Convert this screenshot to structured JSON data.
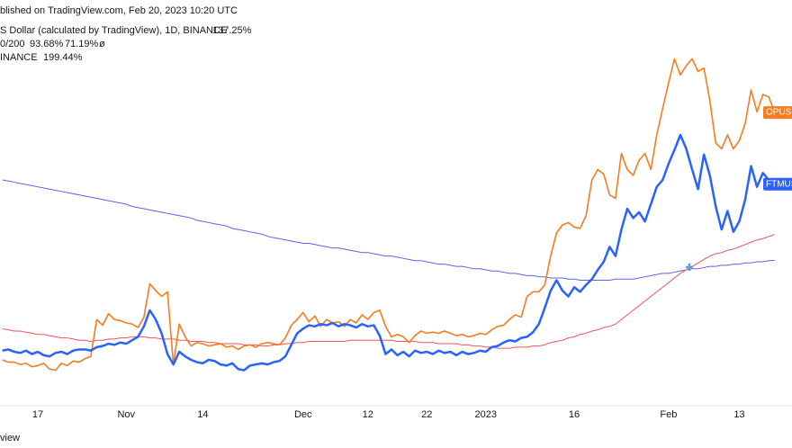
{
  "header": {
    "source": "blished on TradingView.com, Feb 20, 2023 10:20 UTC",
    "footer": "view"
  },
  "chart_data": {
    "type": "line",
    "ma_label": "0/200",
    "ma_symbol": "ø",
    "ylim": [
      -54,
      297
    ],
    "categories": [
      null,
      null,
      null,
      null,
      null,
      null,
      "17",
      null,
      null,
      null,
      null,
      null,
      null,
      null,
      null,
      null,
      null,
      null,
      null,
      null,
      null,
      "Nov",
      null,
      null,
      null,
      null,
      null,
      null,
      null,
      null,
      null,
      null,
      null,
      null,
      "14",
      null,
      null,
      null,
      null,
      null,
      null,
      null,
      null,
      null,
      null,
      null,
      null,
      null,
      null,
      null,
      null,
      "Dec",
      null,
      null,
      null,
      null,
      null,
      null,
      null,
      null,
      null,
      null,
      "12",
      null,
      null,
      null,
      null,
      null,
      null,
      null,
      null,
      null,
      "22",
      null,
      null,
      null,
      null,
      null,
      null,
      null,
      null,
      null,
      "2023",
      null,
      null,
      null,
      null,
      null,
      null,
      null,
      null,
      null,
      null,
      null,
      null,
      null,
      null,
      "16",
      null,
      null,
      null,
      null,
      null,
      null,
      null,
      null,
      null,
      null,
      null,
      null,
      null,
      null,
      null,
      "Feb",
      null,
      null,
      null,
      null,
      null,
      null,
      null,
      null,
      null,
      null,
      null,
      "13",
      null,
      null,
      null,
      null,
      null,
      null
    ],
    "series": [
      {
        "name": "S Dollar (calculated by TradingView), 1D, BINANCE",
        "tag": "FTMUS",
        "color": "#2962ff",
        "width": 2.5,
        "last_label": "137.25%",
        "values": [
          -7,
          -6,
          -8,
          -9,
          -7,
          -10,
          -8,
          -11,
          -12,
          -9,
          -8,
          -10,
          -7,
          -6,
          -6,
          -7,
          -4,
          -3,
          -1,
          -2,
          0,
          -1,
          2,
          5,
          14,
          28,
          20,
          8,
          -10,
          -19,
          -8,
          -12,
          -15,
          -17,
          -18,
          -15,
          -16,
          -19,
          -20,
          -18,
          -23,
          -24,
          -20,
          -19,
          -18,
          -19,
          -17,
          -16,
          -12,
          -2,
          8,
          12,
          15,
          14,
          16,
          15,
          17,
          14,
          16,
          15,
          13,
          16,
          14,
          15,
          6,
          -10,
          -6,
          -11,
          -8,
          -12,
          -7,
          -9,
          -8,
          -10,
          -7,
          -9,
          -8,
          -11,
          -8,
          -10,
          -9,
          -7,
          -8,
          -4,
          -3,
          0,
          2,
          1,
          4,
          5,
          9,
          16,
          30,
          45,
          54,
          45,
          40,
          48,
          44,
          50,
          55,
          63,
          70,
          83,
          75,
          98,
          116,
          108,
          113,
          105,
          120,
          135,
          141,
          155,
          167,
          180,
          168,
          150,
          133,
          163,
          145,
          118,
          98,
          114,
          96,
          105,
          124,
          153,
          135,
          147,
          141,
          137.25
        ]
      },
      {
        "name": "INANCE",
        "tag": "OPUSD",
        "color": "#f57c1f",
        "width": 1.6,
        "last_label": "199.44%",
        "values": [
          -15,
          -17,
          -17,
          -19,
          -18,
          -21,
          -20,
          -18,
          -23,
          -24,
          -18,
          -20,
          -16,
          -17,
          -14,
          -12,
          20,
          15,
          25,
          20,
          19,
          17,
          16,
          13,
          22,
          51,
          45,
          40,
          44,
          -19,
          16,
          5,
          -3,
          0,
          -1,
          -3,
          -2,
          -1,
          -4,
          -3,
          -6,
          -3,
          -2,
          -4,
          -1,
          0,
          -1,
          -2,
          4,
          15,
          20,
          26,
          18,
          23,
          14,
          20,
          17,
          18,
          14,
          20,
          17,
          24,
          20,
          26,
          28,
          14,
          5,
          7,
          5,
          0,
          6,
          10,
          8,
          9,
          8,
          10,
          8,
          6,
          7,
          5,
          6,
          8,
          7,
          11,
          14,
          15,
          20,
          24,
          22,
          40,
          44,
          44,
          50,
          75,
          95,
          102,
          104,
          100,
          99,
          110,
          141,
          150,
          146,
          128,
          125,
          164,
          150,
          145,
          158,
          164,
          150,
          180,
          203,
          225,
          246,
          232,
          240,
          246,
          235,
          238,
          210,
          173,
          168,
          180,
          168,
          175,
          190,
          219,
          200,
          215,
          213,
          199.44
        ]
      },
      {
        "color": "#f2525b",
        "width": 1,
        "last_label": "93.68%",
        "values": [
          12,
          11,
          10,
          10,
          9,
          8,
          7,
          7,
          6,
          5,
          4,
          4,
          3,
          2,
          2,
          1,
          2,
          2,
          3,
          3,
          4,
          4,
          5,
          5,
          5,
          4,
          4,
          3,
          3,
          3,
          2,
          2,
          1,
          1,
          1,
          0,
          0,
          -1,
          -1,
          -1,
          -1,
          -2,
          -2,
          -2,
          -3,
          -3,
          -2,
          -2,
          -1,
          -1,
          0,
          0,
          1,
          1,
          1,
          1,
          1,
          1,
          1,
          2,
          2,
          2,
          2,
          2,
          2,
          2,
          2,
          1,
          1,
          1,
          1,
          0,
          0,
          0,
          -1,
          -1,
          -1,
          -1,
          -2,
          -2,
          -3,
          -3,
          -4,
          -4,
          -5,
          -5,
          -5,
          -4,
          -4,
          -4,
          -3,
          -3,
          -2,
          0,
          1,
          2,
          4,
          5,
          7,
          8,
          10,
          11,
          13,
          14,
          16,
          20,
          24,
          28,
          32,
          36,
          40,
          44,
          48,
          52,
          56,
          60,
          63,
          66,
          69,
          72,
          75,
          77,
          78,
          80,
          81,
          83,
          85,
          87,
          89,
          90,
          92,
          93.68
        ]
      },
      {
        "color": "#5b63f0",
        "width": 1,
        "last_label": "71.19%",
        "values": [
          141,
          140,
          139,
          138,
          137,
          136,
          135,
          134,
          133,
          132,
          131,
          130,
          129,
          128,
          127,
          126,
          125,
          124,
          123,
          122,
          121,
          120,
          118,
          117,
          116,
          115,
          114,
          113,
          112,
          111,
          110,
          109,
          108,
          106,
          105,
          104,
          103,
          102,
          101,
          99,
          98,
          97,
          96,
          95,
          94,
          92,
          91,
          90,
          89,
          88,
          87,
          86,
          86,
          85,
          84,
          83,
          82,
          82,
          81,
          80,
          79,
          78,
          78,
          77,
          76,
          75,
          75,
          74,
          73,
          72,
          71,
          71,
          70,
          69,
          68,
          68,
          67,
          66,
          66,
          65,
          64,
          64,
          63,
          62,
          62,
          61,
          60,
          60,
          59,
          58,
          58,
          57,
          57,
          56,
          56,
          56,
          55,
          55,
          54,
          54,
          54,
          54,
          54,
          54,
          55,
          55,
          55,
          55,
          56,
          57,
          58,
          59,
          60,
          60,
          61,
          62,
          63,
          64,
          64,
          65,
          66,
          66,
          67,
          67,
          68,
          68,
          69,
          69,
          70,
          70,
          71,
          71.19
        ]
      }
    ]
  }
}
